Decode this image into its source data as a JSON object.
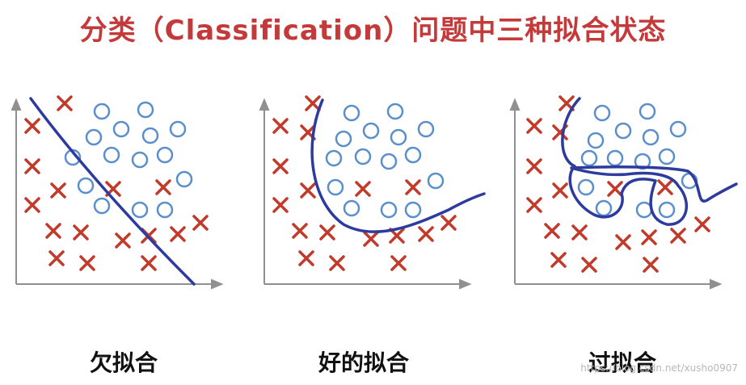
{
  "title": "分类（Classification）问题中三种拟合状态",
  "watermark": "https://blog.csdn.net/xusho0907",
  "colors": {
    "title": "#c43a3a",
    "cross": "#c23a2a",
    "circle": "#5a8fcc",
    "boundary": "#2d3a9e",
    "axis": "#909090"
  },
  "panels": [
    {
      "caption": "欠拟合",
      "fit": "underfit"
    },
    {
      "caption": "好的拟合",
      "fit": "good-fit"
    },
    {
      "caption": "过拟合",
      "fit": "overfit"
    }
  ]
}
